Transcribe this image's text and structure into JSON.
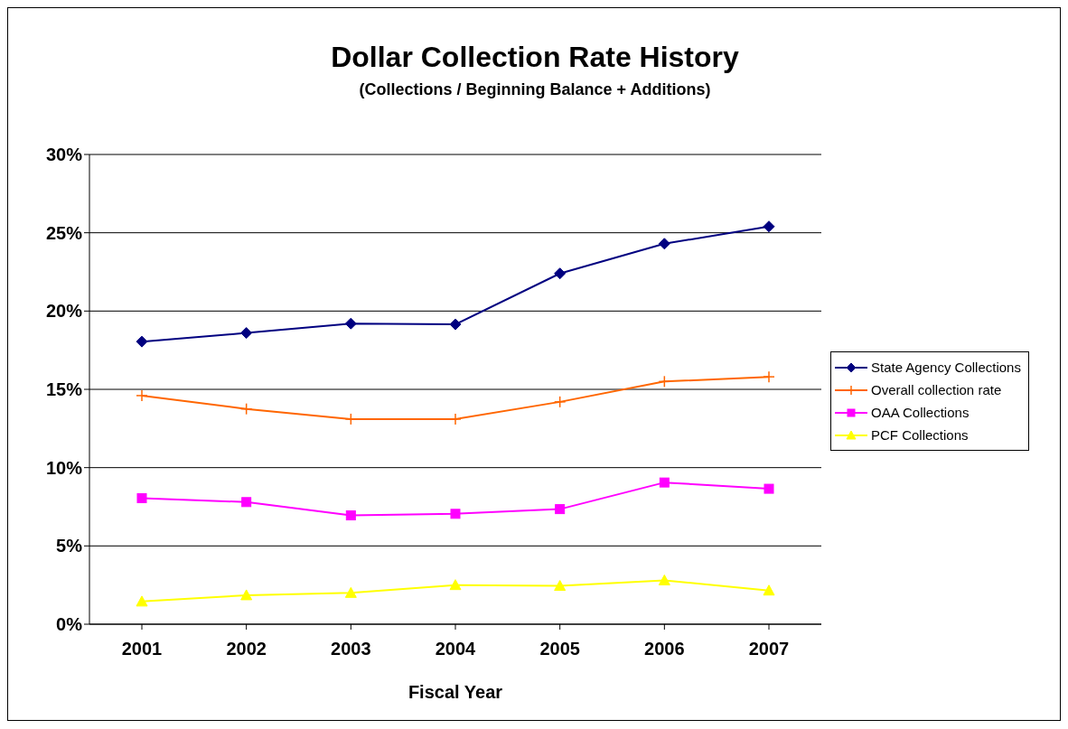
{
  "chart_data": {
    "type": "line",
    "title": "Dollar Collection Rate History",
    "subtitle": "(Collections / Beginning Balance + Additions)",
    "xlabel": "Fiscal Year",
    "categories": [
      "2001",
      "2002",
      "2003",
      "2004",
      "2005",
      "2006",
      "2007"
    ],
    "series": [
      {
        "name": "State Agency Collections",
        "color": "#000080",
        "marker": "diamond",
        "values": [
          18.05,
          18.6,
          19.2,
          19.15,
          22.4,
          24.3,
          25.4
        ]
      },
      {
        "name": "Overall collection rate",
        "color": "#ff6600",
        "marker": "cross",
        "values": [
          14.6,
          13.75,
          13.1,
          13.1,
          14.2,
          15.5,
          15.8
        ]
      },
      {
        "name": "OAA Collections",
        "color": "#ff00ff",
        "marker": "square",
        "values": [
          8.05,
          7.8,
          6.95,
          7.05,
          7.35,
          9.05,
          8.65
        ]
      },
      {
        "name": "PCF Collections",
        "color": "#ffff00",
        "marker": "triangle",
        "values": [
          1.45,
          1.85,
          2.0,
          2.5,
          2.45,
          2.8,
          2.15
        ]
      }
    ],
    "ylim": [
      0,
      30
    ],
    "yticks": [
      {
        "value": 0,
        "label": "0%"
      },
      {
        "value": 5,
        "label": "5%"
      },
      {
        "value": 10,
        "label": "10%"
      },
      {
        "value": 15,
        "label": "15%"
      },
      {
        "value": 20,
        "label": "20%"
      },
      {
        "value": 25,
        "label": "25%"
      },
      {
        "value": 30,
        "label": "30%"
      }
    ],
    "grid": "y",
    "legend": "right"
  }
}
